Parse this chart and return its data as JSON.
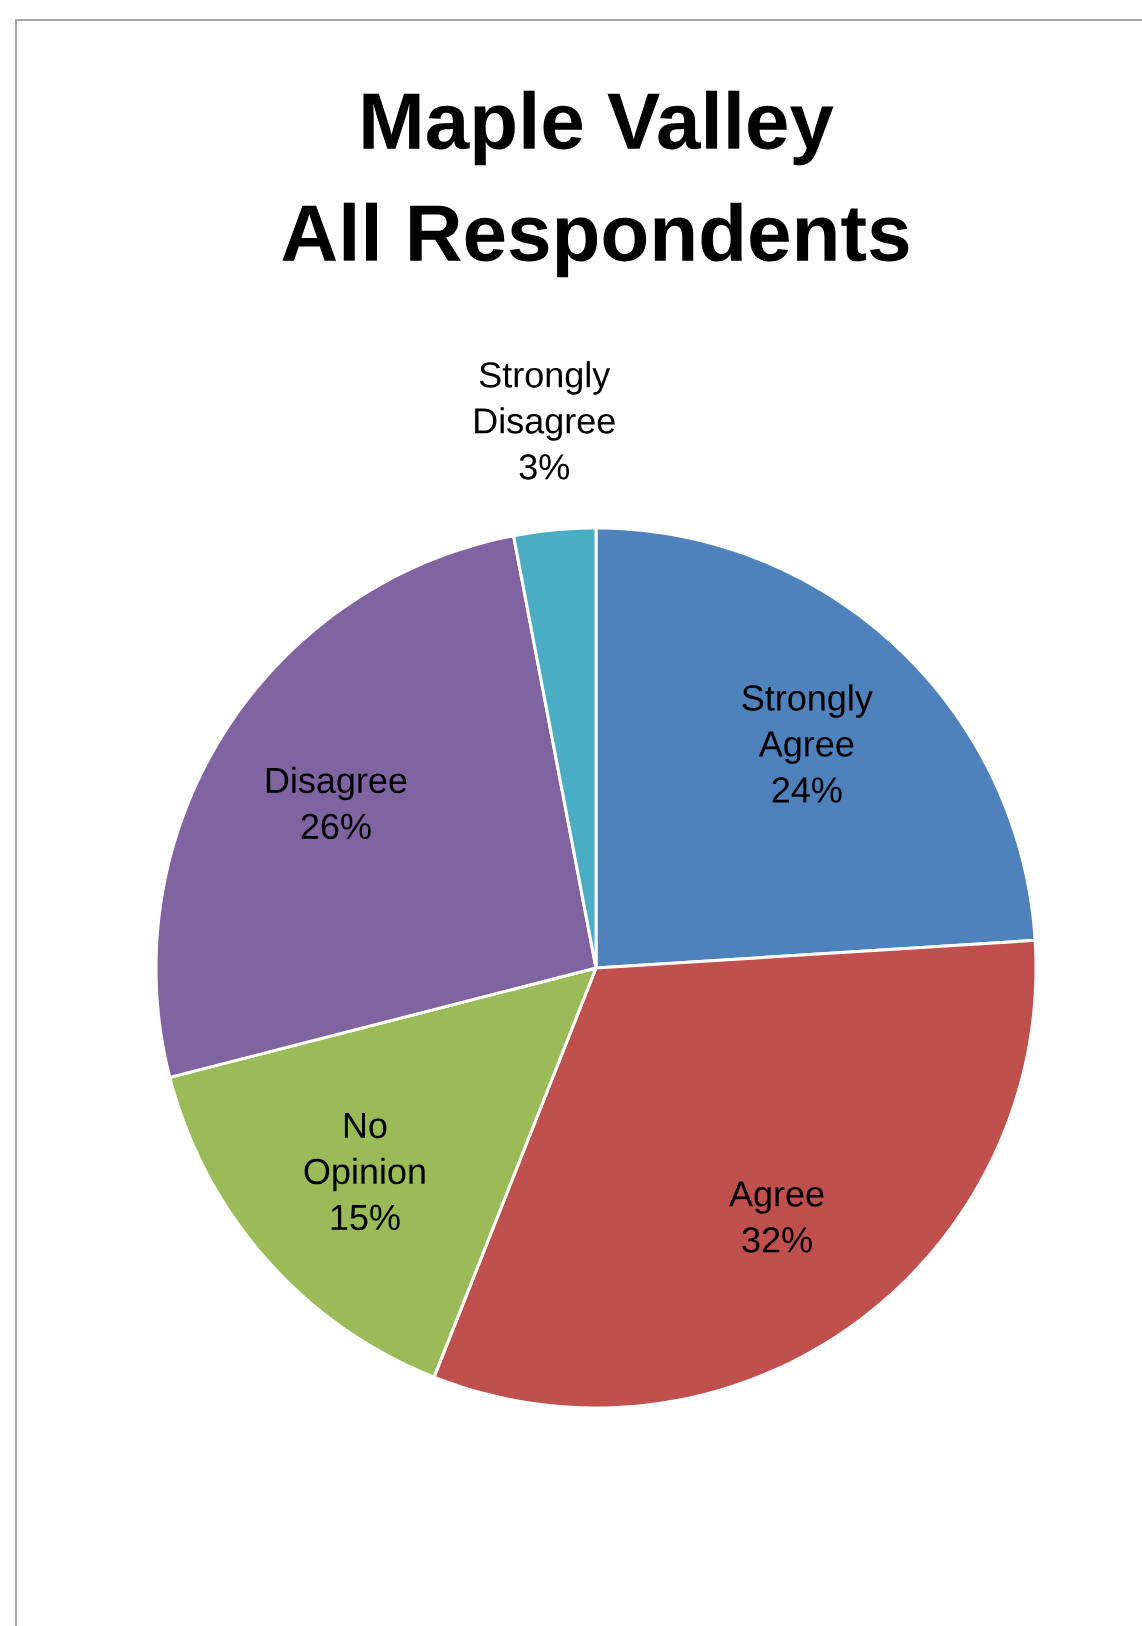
{
  "chart_data": {
    "type": "pie",
    "title": "Maple Valley",
    "subtitle": "All Respondents",
    "categories": [
      "Strongly Agree",
      "Agree",
      "No Opinion",
      "Disagree",
      "Strongly Disagree"
    ],
    "values": [
      24,
      32,
      15,
      26,
      3
    ],
    "value_labels": [
      "24%",
      "32%",
      "15%",
      "26%",
      "3%"
    ],
    "colors": [
      "#4f81bd",
      "#c0504d",
      "#9bbb59",
      "#8064a2",
      "#4bacc6"
    ]
  }
}
